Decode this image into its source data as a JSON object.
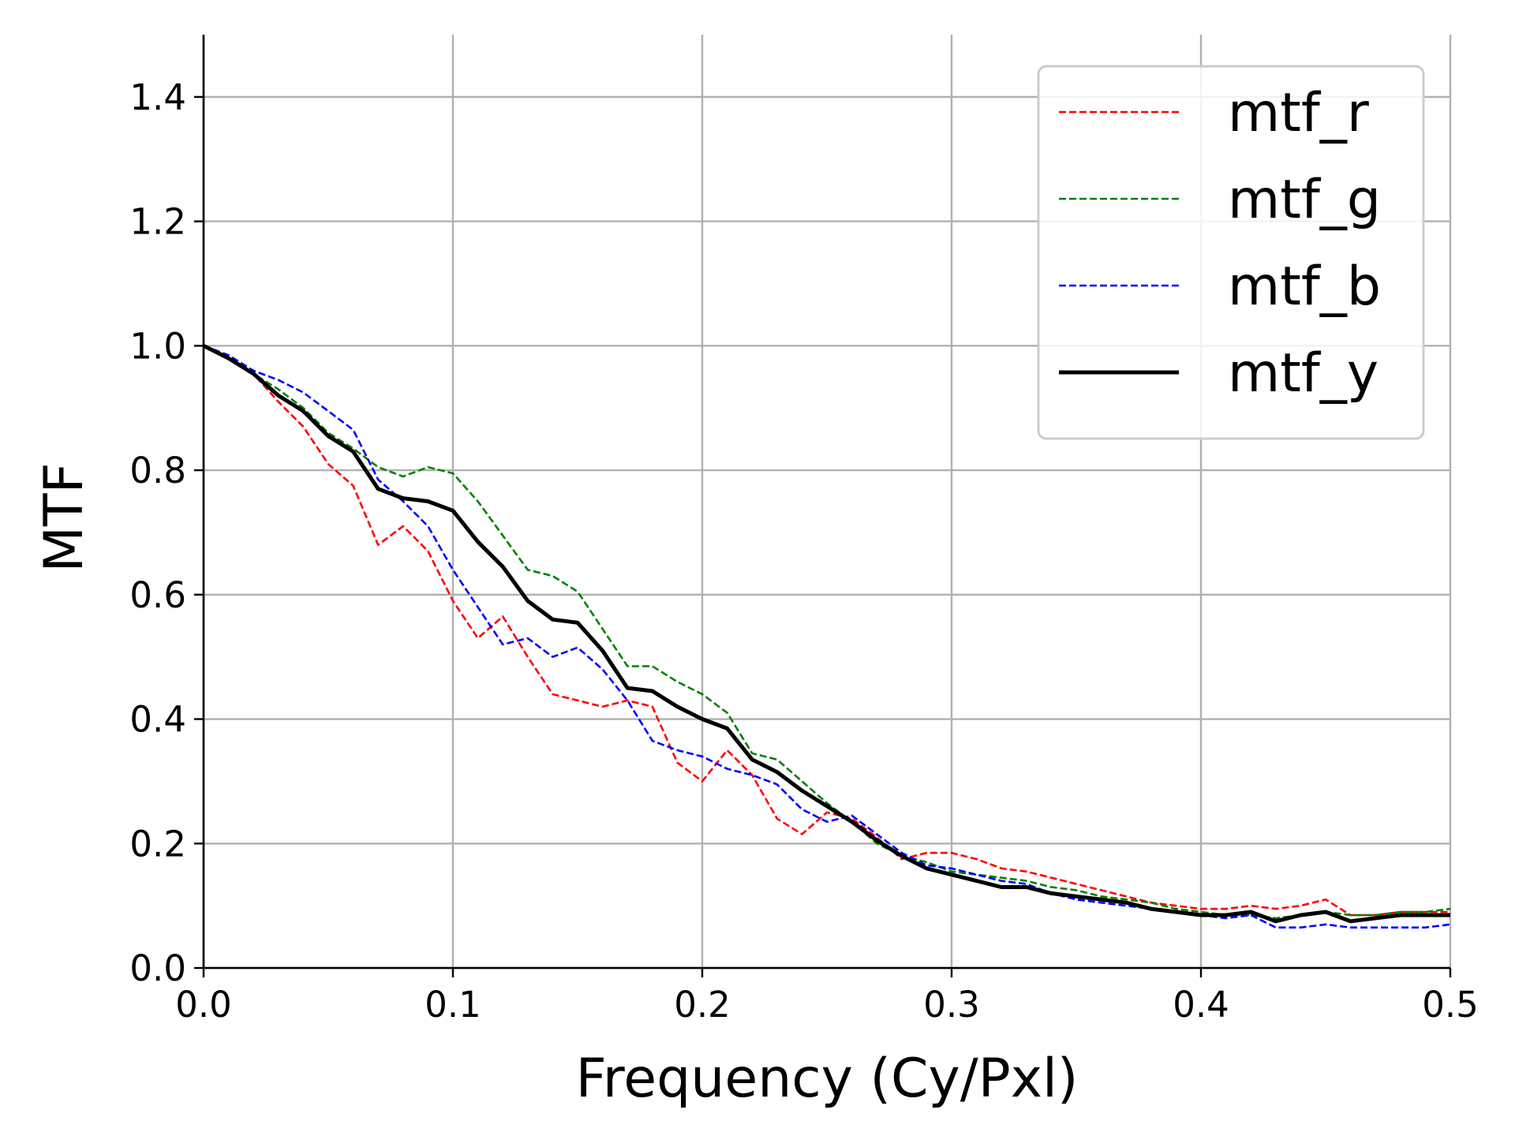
{
  "chart_data": {
    "type": "line",
    "title": "",
    "xlabel": "Frequency (Cy/Pxl)",
    "ylabel": "MTF",
    "xlim": [
      0,
      0.5
    ],
    "ylim": [
      0,
      1.5
    ],
    "x_ticks": [
      0.0,
      0.1,
      0.2,
      0.3,
      0.4,
      0.5
    ],
    "x_tick_labels": [
      "0.0",
      "0.1",
      "0.2",
      "0.3",
      "0.4",
      "0.5"
    ],
    "y_ticks": [
      0.0,
      0.2,
      0.4,
      0.6,
      0.8,
      1.0,
      1.2,
      1.4
    ],
    "y_tick_labels": [
      "0.0",
      "0.2",
      "0.4",
      "0.6",
      "0.8",
      "1.0",
      "1.2",
      "1.4"
    ],
    "grid": true,
    "legend_position": "upper-right",
    "x": [
      0.0,
      0.01,
      0.02,
      0.03,
      0.04,
      0.05,
      0.06,
      0.07,
      0.08,
      0.09,
      0.1,
      0.11,
      0.12,
      0.13,
      0.14,
      0.15,
      0.16,
      0.17,
      0.18,
      0.19,
      0.2,
      0.21,
      0.22,
      0.23,
      0.24,
      0.25,
      0.26,
      0.27,
      0.28,
      0.29,
      0.3,
      0.31,
      0.32,
      0.33,
      0.34,
      0.35,
      0.36,
      0.37,
      0.38,
      0.39,
      0.4,
      0.41,
      0.42,
      0.43,
      0.44,
      0.45,
      0.46,
      0.47,
      0.48,
      0.49,
      0.5
    ],
    "series": [
      {
        "name": "mtf_r",
        "color": "#ff0000",
        "style": "dashed",
        "values": [
          1.0,
          0.98,
          0.955,
          0.91,
          0.87,
          0.81,
          0.775,
          0.68,
          0.71,
          0.67,
          0.59,
          0.53,
          0.565,
          0.5,
          0.44,
          0.43,
          0.42,
          0.43,
          0.42,
          0.33,
          0.3,
          0.35,
          0.31,
          0.24,
          0.215,
          0.25,
          0.24,
          0.21,
          0.175,
          0.185,
          0.185,
          0.175,
          0.16,
          0.155,
          0.145,
          0.135,
          0.125,
          0.115,
          0.105,
          0.1,
          0.095,
          0.095,
          0.1,
          0.095,
          0.1,
          0.11,
          0.085,
          0.085,
          0.09,
          0.09,
          0.09
        ]
      },
      {
        "name": "mtf_g",
        "color": "#008000",
        "style": "dashed",
        "values": [
          1.0,
          0.98,
          0.955,
          0.93,
          0.9,
          0.86,
          0.835,
          0.805,
          0.79,
          0.805,
          0.795,
          0.75,
          0.695,
          0.64,
          0.63,
          0.605,
          0.545,
          0.485,
          0.485,
          0.46,
          0.44,
          0.41,
          0.345,
          0.335,
          0.3,
          0.265,
          0.235,
          0.2,
          0.18,
          0.17,
          0.155,
          0.15,
          0.145,
          0.14,
          0.13,
          0.125,
          0.115,
          0.11,
          0.105,
          0.095,
          0.09,
          0.085,
          0.085,
          0.08,
          0.085,
          0.09,
          0.085,
          0.085,
          0.09,
          0.09,
          0.095
        ]
      },
      {
        "name": "mtf_b",
        "color": "#0000ff",
        "style": "dashed",
        "values": [
          1.0,
          0.985,
          0.96,
          0.945,
          0.925,
          0.895,
          0.865,
          0.785,
          0.75,
          0.71,
          0.64,
          0.58,
          0.52,
          0.53,
          0.5,
          0.515,
          0.48,
          0.43,
          0.365,
          0.35,
          0.34,
          0.32,
          0.31,
          0.295,
          0.255,
          0.235,
          0.245,
          0.215,
          0.185,
          0.165,
          0.16,
          0.15,
          0.14,
          0.135,
          0.12,
          0.11,
          0.105,
          0.1,
          0.095,
          0.09,
          0.085,
          0.08,
          0.085,
          0.065,
          0.065,
          0.07,
          0.065,
          0.065,
          0.065,
          0.065,
          0.07
        ]
      },
      {
        "name": "mtf_y",
        "color": "#000000",
        "style": "solid",
        "values": [
          1.0,
          0.98,
          0.955,
          0.92,
          0.895,
          0.855,
          0.83,
          0.77,
          0.755,
          0.75,
          0.735,
          0.685,
          0.645,
          0.59,
          0.56,
          0.555,
          0.51,
          0.45,
          0.445,
          0.42,
          0.4,
          0.385,
          0.335,
          0.315,
          0.285,
          0.26,
          0.235,
          0.205,
          0.18,
          0.16,
          0.15,
          0.14,
          0.13,
          0.13,
          0.12,
          0.115,
          0.11,
          0.105,
          0.095,
          0.09,
          0.085,
          0.085,
          0.09,
          0.075,
          0.085,
          0.09,
          0.075,
          0.08,
          0.085,
          0.085,
          0.085
        ]
      }
    ]
  }
}
